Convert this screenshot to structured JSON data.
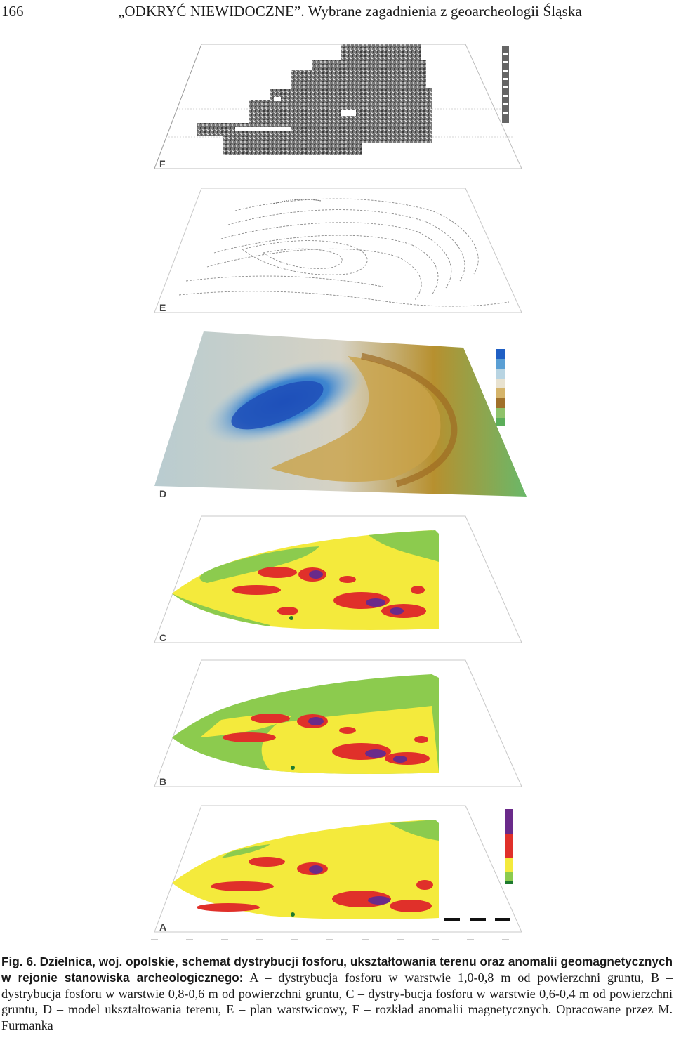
{
  "header": {
    "page_number": "166",
    "running_title": "„ODKRYĆ NIEWIDOCZNE”. Wybrane zagadnienia z geoarcheologii Śląska"
  },
  "figure": {
    "panels": [
      {
        "letter": "F",
        "content": "magnetic-anomalies"
      },
      {
        "letter": "E",
        "content": "contour-plan"
      },
      {
        "letter": "D",
        "content": "terrain-model"
      },
      {
        "letter": "C",
        "content": "phosphorus-0.6-0.4"
      },
      {
        "letter": "B",
        "content": "phosphorus-0.8-0.6"
      },
      {
        "letter": "A",
        "content": "phosphorus-1.0-0.8"
      }
    ],
    "colors": {
      "phosphorus_green": "#8ccb4e",
      "phosphorus_yellow": "#f4ea3c",
      "phosphorus_red": "#e0302a",
      "phosphorus_purple": "#6a2a8a",
      "terrain_blue": "#1f5fc4",
      "terrain_brown": "#a0702a",
      "terrain_green": "#5cae5a"
    }
  },
  "caption": {
    "label": "Fig. 6.",
    "bold_text": "Dzielnica, woj. opolskie, schemat dystrybucji fosforu, ukształtowania terenu oraz anomalii geomagnetycznych w rejonie stanowiska archeologicznego:",
    "body_text": "A – dystrybucja fosforu w warstwie 1,0-0,8 m od powierzchni gruntu, B – dystrybucja fosforu w warstwie 0,8-0,6 m od powierzchni gruntu, C – dystry-bucja fosforu w warstwie 0,6-0,4 m od powierzchni gruntu, D – model ukształtowania terenu, E – plan warstwicowy, F – rozkład anomalii magnetycznych. Opracowane przez M. Furmanka"
  }
}
